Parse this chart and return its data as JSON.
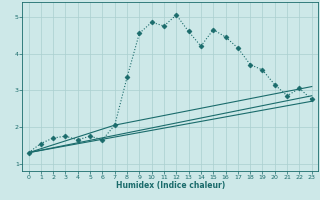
{
  "xlabel": "Humidex (Indice chaleur)",
  "xlim": [
    -0.5,
    23.5
  ],
  "ylim": [
    0.8,
    5.4
  ],
  "xticks": [
    0,
    1,
    2,
    3,
    4,
    5,
    6,
    7,
    8,
    9,
    10,
    11,
    12,
    13,
    14,
    15,
    16,
    17,
    18,
    19,
    20,
    21,
    22,
    23
  ],
  "yticks": [
    1,
    2,
    3,
    4,
    5
  ],
  "bg_color": "#cde8e8",
  "line_color": "#1a6b6b",
  "grid_color": "#aacfcf",
  "main_curve": {
    "x": [
      0,
      1,
      2,
      3,
      4,
      5,
      6,
      7,
      8,
      9,
      10,
      11,
      12,
      13,
      14,
      15,
      16,
      17,
      18,
      19,
      20,
      21,
      22,
      23
    ],
    "y": [
      1.3,
      1.55,
      1.7,
      1.75,
      1.65,
      1.75,
      1.65,
      2.05,
      3.35,
      4.55,
      4.85,
      4.75,
      5.05,
      4.6,
      4.2,
      4.65,
      4.45,
      4.15,
      3.7,
      3.55,
      3.15,
      2.85,
      3.05,
      2.75
    ]
  },
  "straight_lines": [
    {
      "x": [
        0,
        23
      ],
      "y": [
        1.3,
        2.7
      ]
    },
    {
      "x": [
        0,
        23
      ],
      "y": [
        1.3,
        2.85
      ]
    },
    {
      "x": [
        0,
        7,
        23
      ],
      "y": [
        1.3,
        2.05,
        3.1
      ]
    }
  ]
}
